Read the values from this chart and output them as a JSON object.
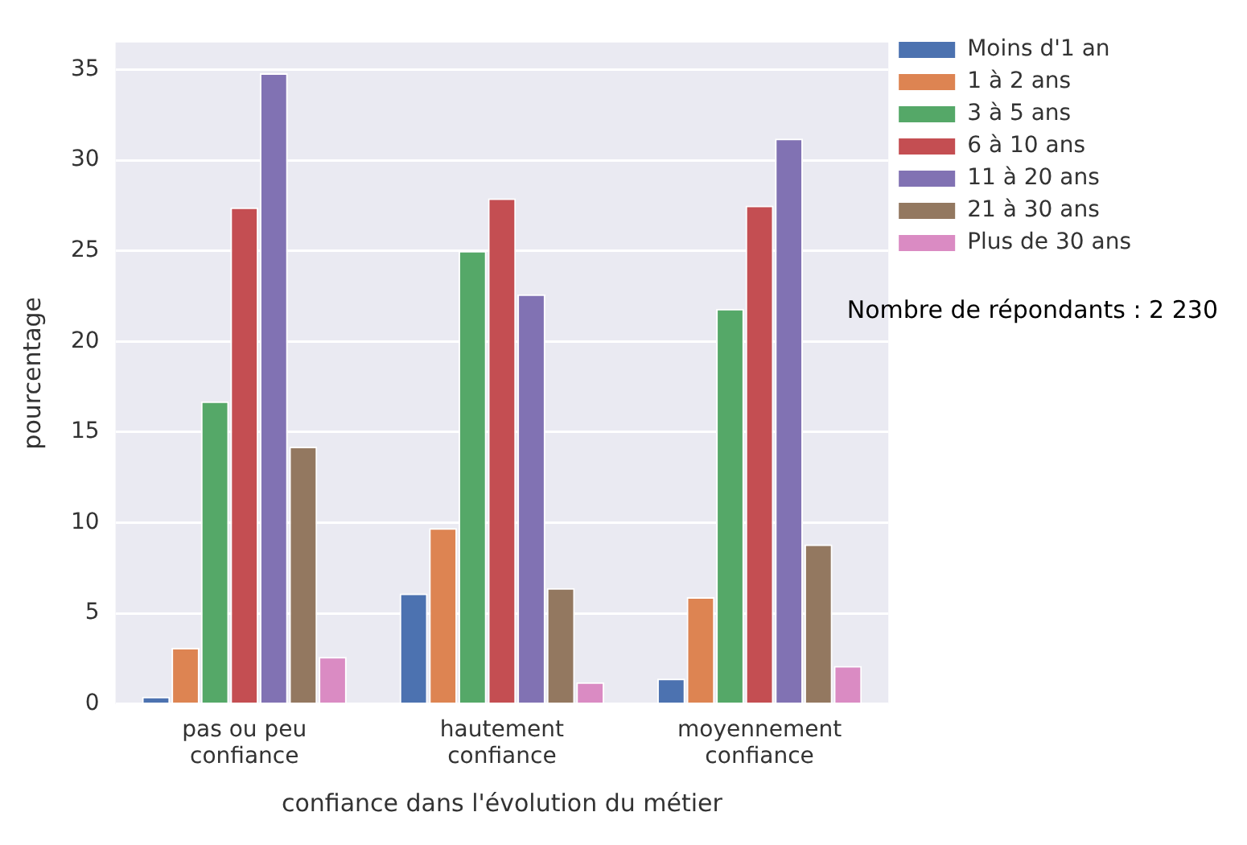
{
  "chart_data": {
    "type": "bar",
    "xlabel": "confiance dans l'évolution du métier",
    "ylabel": "pourcentage",
    "categories": [
      "pas ou peu confiance",
      "hautement confiance",
      "moyennement confiance"
    ],
    "series": [
      {
        "name": "Moins d'1 an",
        "color": "#4c72b0",
        "values": [
          0.4,
          6.1,
          1.4
        ]
      },
      {
        "name": "1 à 2 ans",
        "color": "#dd8452",
        "values": [
          3.1,
          9.7,
          5.9
        ]
      },
      {
        "name": "3 à 5 ans",
        "color": "#55a868",
        "values": [
          16.7,
          25.0,
          21.8
        ]
      },
      {
        "name": "6 à 10 ans",
        "color": "#c44e52",
        "values": [
          27.4,
          27.9,
          27.5
        ]
      },
      {
        "name": "11 à 20 ans",
        "color": "#8172b3",
        "values": [
          34.8,
          22.6,
          31.2
        ]
      },
      {
        "name": "21 à 30 ans",
        "color": "#937860",
        "values": [
          14.2,
          6.4,
          8.8
        ]
      },
      {
        "name": "Plus de 30 ans",
        "color": "#da8bc3",
        "values": [
          2.6,
          1.2,
          2.1
        ]
      }
    ],
    "ylim": [
      0,
      36.5
    ],
    "yticks": [
      0,
      5,
      10,
      15,
      20,
      25,
      30,
      35
    ],
    "grid": "y",
    "legend": "top right",
    "annotations": [
      "Nombre de répondants : 2 230"
    ]
  }
}
